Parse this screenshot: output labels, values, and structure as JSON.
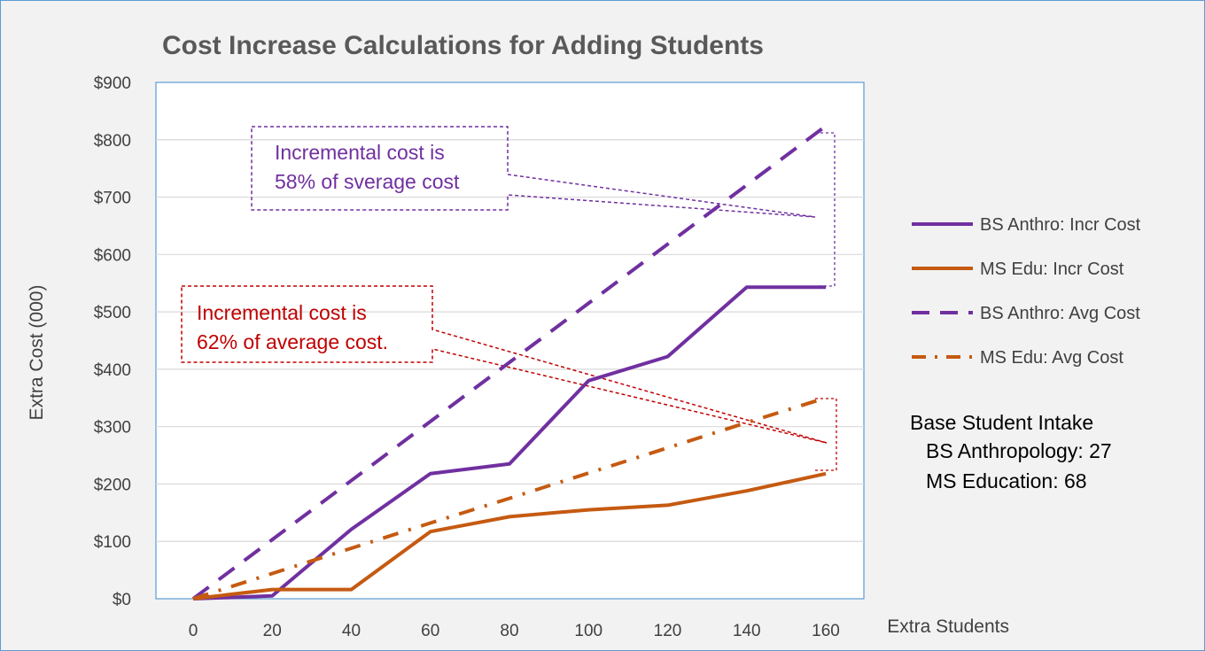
{
  "chart_data": {
    "type": "line",
    "title": "Cost Increase Calculations for Adding Students",
    "xlabel": "Extra Students",
    "ylabel": "Extra Cost (000)",
    "x": [
      0,
      20,
      40,
      60,
      80,
      100,
      120,
      140,
      160
    ],
    "x_tick_labels": [
      "0",
      "20",
      "40",
      "60",
      "80",
      "100",
      "120",
      "140",
      "160"
    ],
    "ylim": [
      0,
      900
    ],
    "y_ticks": [
      0,
      100,
      200,
      300,
      400,
      500,
      600,
      700,
      800,
      900
    ],
    "y_tick_labels": [
      "$0",
      "$100",
      "$200",
      "$300",
      "$400",
      "$500",
      "$600",
      "$700",
      "$800",
      "$900"
    ],
    "grid": "horizontal",
    "legend_position": "right",
    "series": [
      {
        "name": "BS Anthro: Incr Cost",
        "color": "#7030a0",
        "style": "solid",
        "values": [
          0,
          5,
          121,
          218,
          235,
          380,
          422,
          543,
          543
        ]
      },
      {
        "name": "MS Edu: Incr Cost",
        "color": "#c55a11",
        "style": "solid",
        "values": [
          0,
          16,
          16,
          117,
          143,
          155,
          163,
          188,
          218
        ]
      },
      {
        "name": "BS Anthro: Avg Cost",
        "color": "#7030a0",
        "style": "dashed",
        "values": [
          0,
          103,
          206,
          309,
          412,
          515,
          618,
          721,
          824
        ]
      },
      {
        "name": "MS Edu: Avg Cost",
        "color": "#c55a11",
        "style": "dashdot",
        "values": [
          0,
          44,
          88,
          132,
          175,
          219,
          263,
          307,
          350
        ]
      }
    ],
    "annotations": [
      {
        "lines": [
          "Incremental cost is",
          "58% of sverage cost"
        ],
        "color": "#7030a0"
      },
      {
        "lines": [
          "Incremental cost is",
          "62% of average  cost."
        ],
        "color": "#c00000"
      }
    ],
    "side_note": {
      "title": "Base Student Intake",
      "lines": [
        "BS Anthropology: 27",
        "MS Education: 68"
      ]
    }
  }
}
